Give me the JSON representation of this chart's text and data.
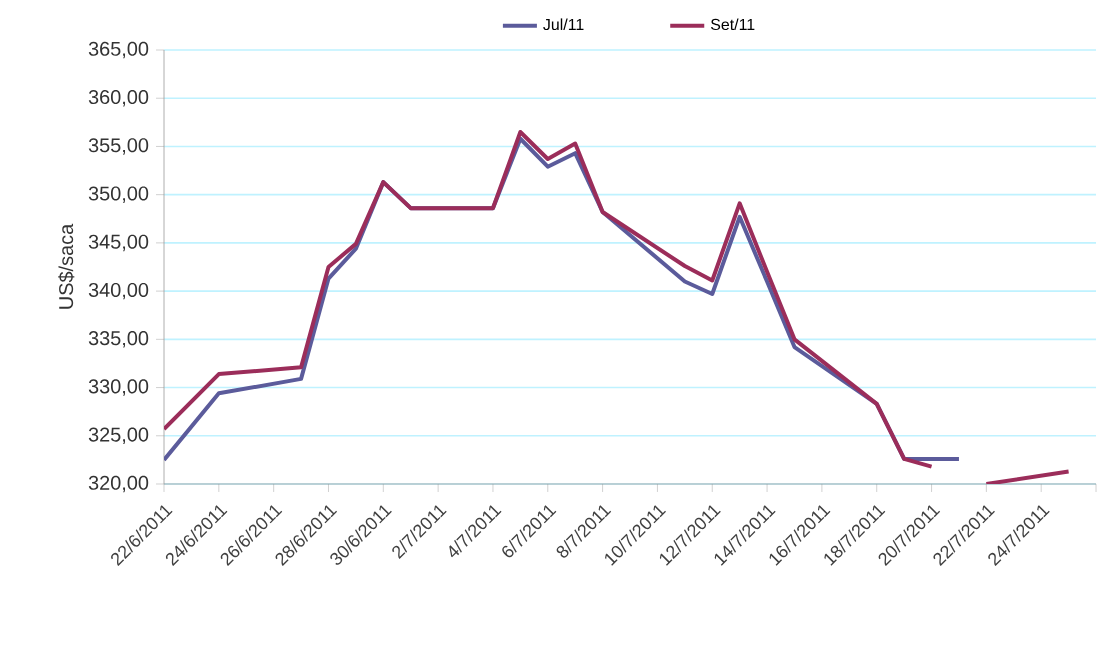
{
  "chart_data": {
    "type": "line",
    "ylabel": "US$/saca",
    "x": [
      "2011-06-22",
      "2011-06-24",
      "2011-06-27",
      "2011-06-28",
      "2011-06-29",
      "2011-06-30",
      "2011-07-01",
      "2011-07-04",
      "2011-07-05",
      "2011-07-06",
      "2011-07-07",
      "2011-07-08",
      "2011-07-11",
      "2011-07-12",
      "2011-07-13",
      "2011-07-14",
      "2011-07-15",
      "2011-07-18",
      "2011-07-19",
      "2011-07-20",
      "2011-07-21",
      "2011-07-22",
      "2011-07-25"
    ],
    "series": [
      {
        "name": "Jul/11",
        "color": "#5b5b9b",
        "values": [
          322.5,
          329.4,
          330.9,
          341.3,
          344.4,
          351.3,
          348.6,
          348.6,
          355.8,
          352.9,
          354.3,
          348.2,
          341.0,
          339.7,
          347.7,
          341.0,
          334.2,
          328.3,
          322.6,
          322.6,
          322.6,
          null,
          null
        ]
      },
      {
        "name": "Set/11",
        "color": "#9b2d5a",
        "values": [
          325.7,
          331.4,
          332.1,
          342.5,
          344.9,
          351.3,
          348.6,
          348.6,
          356.5,
          353.7,
          355.3,
          348.2,
          342.6,
          341.1,
          349.1,
          342.0,
          335.0,
          328.3,
          322.6,
          321.8,
          null,
          320.0,
          321.3
        ]
      }
    ],
    "xlim": [
      "2011-06-22",
      "2011-07-26"
    ],
    "xticks": [
      {
        "value": "2011-06-22",
        "label": "22/6/2011"
      },
      {
        "value": "2011-06-24",
        "label": "24/6/2011"
      },
      {
        "value": "2011-06-26",
        "label": "26/6/2011"
      },
      {
        "value": "2011-06-28",
        "label": "28/6/2011"
      },
      {
        "value": "2011-06-30",
        "label": "30/6/2011"
      },
      {
        "value": "2011-07-02",
        "label": "2/7/2011"
      },
      {
        "value": "2011-07-04",
        "label": "4/7/2011"
      },
      {
        "value": "2011-07-06",
        "label": "6/7/2011"
      },
      {
        "value": "2011-07-08",
        "label": "8/7/2011"
      },
      {
        "value": "2011-07-10",
        "label": "10/7/2011"
      },
      {
        "value": "2011-07-12",
        "label": "12/7/2011"
      },
      {
        "value": "2011-07-14",
        "label": "14/7/2011"
      },
      {
        "value": "2011-07-16",
        "label": "16/7/2011"
      },
      {
        "value": "2011-07-18",
        "label": "18/7/2011"
      },
      {
        "value": "2011-07-20",
        "label": "20/7/2011"
      },
      {
        "value": "2011-07-22",
        "label": "22/7/2011"
      },
      {
        "value": "2011-07-24",
        "label": "24/7/2011"
      },
      {
        "value": "2011-07-26",
        "label": null
      }
    ],
    "ylim": [
      320,
      365
    ],
    "yticks": [
      {
        "value": 320,
        "label": "320,00"
      },
      {
        "value": 325,
        "label": "325,00"
      },
      {
        "value": 330,
        "label": "330,00"
      },
      {
        "value": 335,
        "label": "335,00"
      },
      {
        "value": 340,
        "label": "340,00"
      },
      {
        "value": 345,
        "label": "345,00"
      },
      {
        "value": 350,
        "label": "350,00"
      },
      {
        "value": 355,
        "label": "355,00"
      },
      {
        "value": 360,
        "label": "360,00"
      },
      {
        "value": 365,
        "label": "365,00"
      }
    ],
    "grid": "y",
    "legend": "top",
    "marker": "none",
    "line_style": "solid"
  }
}
